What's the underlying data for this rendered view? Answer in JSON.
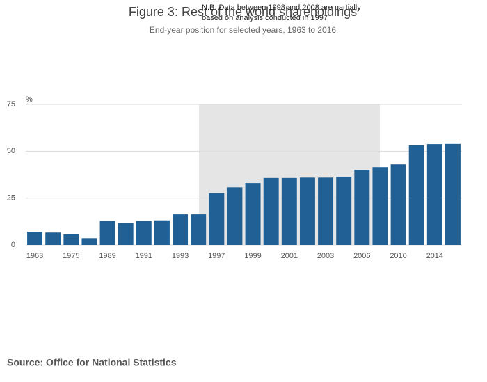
{
  "chart_data": {
    "type": "bar",
    "title": "Figure 3: Rest of the world shareholdings",
    "subtitle": "End-year position for selected years, 1963 to 2016",
    "annotation": [
      "N.B: Data between 1998 and 2008 are partially",
      "based on analysis conducted in 1997"
    ],
    "y_unit": "%",
    "categories": [
      "1963",
      null,
      "1975",
      null,
      "1989",
      null,
      "1991",
      null,
      "1993",
      null,
      "1997",
      null,
      "1999",
      null,
      "2001",
      null,
      "2003",
      null,
      "2006",
      null,
      "2010",
      null,
      "2014",
      null
    ],
    "values": [
      7.0,
      6.6,
      5.6,
      3.6,
      12.8,
      11.8,
      12.8,
      13.1,
      16.3,
      16.3,
      27.6,
      30.7,
      33.0,
      35.7,
      35.7,
      35.9,
      35.9,
      36.3,
      40.0,
      41.5,
      43.0,
      53.2,
      53.8,
      53.9
    ],
    "color": "#206095",
    "ylim": [
      0,
      75
    ],
    "yticks": [
      0,
      25,
      50,
      75
    ],
    "grid": true,
    "source": "Source: Office for National Statistics"
  }
}
